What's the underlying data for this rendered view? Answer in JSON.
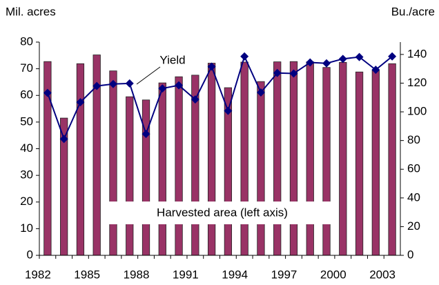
{
  "chart_data": {
    "type": "combo",
    "left_axis_title": "Mil. acres",
    "right_axis_title": "Bu./acre",
    "annotations": [
      "Yield",
      "Harvested area (left axis)"
    ],
    "categories": [
      "1982",
      null,
      null,
      "1985",
      null,
      null,
      "1988",
      null,
      null,
      "1991",
      null,
      null,
      "1994",
      null,
      null,
      "1997",
      null,
      null,
      "2000",
      null,
      null,
      "2003"
    ],
    "series": [
      {
        "name": "Harvested area",
        "type": "bar",
        "color": "#993366",
        "axis": "y",
        "values": [
          72.7,
          51.5,
          71.9,
          75.2,
          69.2,
          59.5,
          58.3,
          64.7,
          67.0,
          67.6,
          72.1,
          62.9,
          72.5,
          65.2,
          72.6,
          72.7,
          72.6,
          70.5,
          72.4,
          68.8,
          69.3,
          71.9
        ]
      },
      {
        "name": "Yield",
        "type": "line",
        "color": "#000080",
        "axis": "y2",
        "values": [
          113.2,
          81.1,
          106.7,
          118.0,
          119.4,
          119.8,
          84.6,
          116.3,
          118.5,
          108.6,
          131.5,
          100.7,
          138.6,
          113.5,
          127.1,
          126.7,
          134.4,
          133.8,
          136.9,
          138.2,
          129.3,
          138.6
        ]
      }
    ],
    "ylim": [
      0,
      80
    ],
    "yticks": [
      0,
      10,
      20,
      30,
      40,
      50,
      60,
      70,
      80
    ],
    "y2lim": [
      0,
      148.6
    ],
    "y2ticks": [
      0,
      20,
      40,
      60,
      80,
      100,
      120,
      140
    ]
  }
}
